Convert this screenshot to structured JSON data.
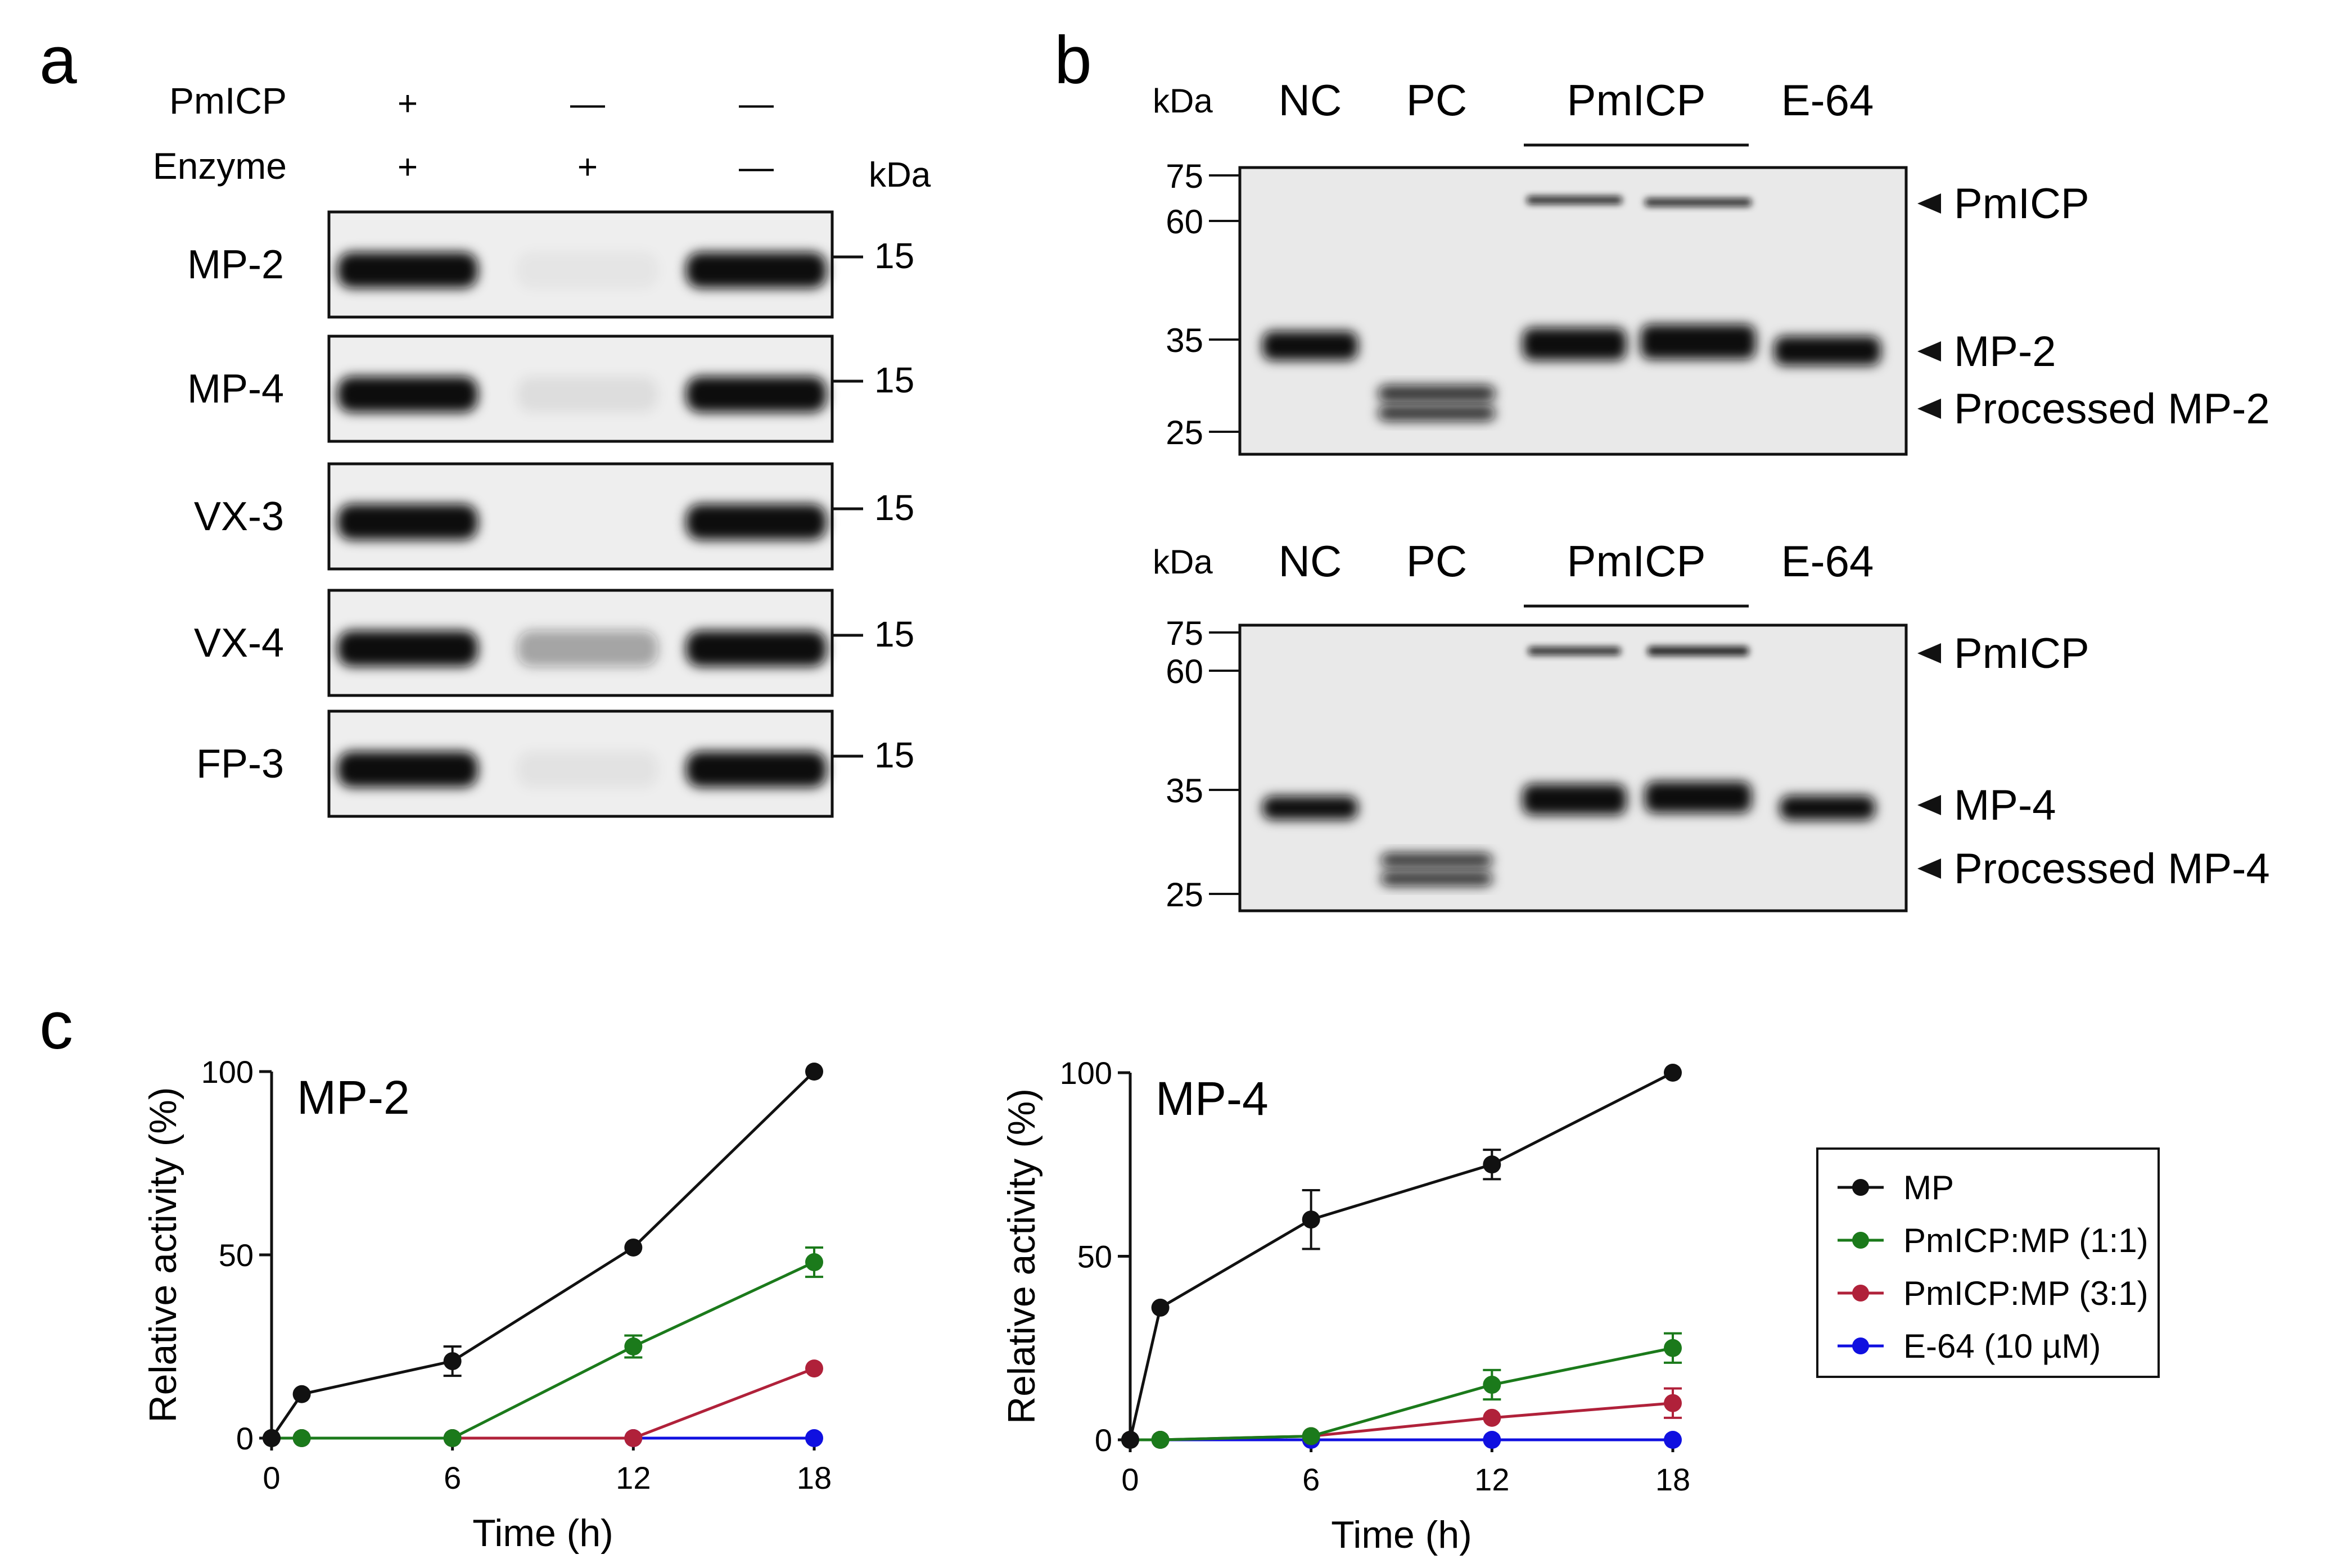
{
  "panels": {
    "a": "a",
    "b": "b",
    "c": "c"
  },
  "panel_a": {
    "header_labels": [
      "PmICP",
      "Enzyme"
    ],
    "row_signs": [
      [
        "+",
        "—",
        "—"
      ],
      [
        "+",
        "+",
        "—"
      ]
    ],
    "kda_label": "kDa",
    "blots": [
      {
        "name": "MP-2",
        "marker": "15",
        "bands": [
          1.0,
          0.04,
          1.0
        ]
      },
      {
        "name": "MP-4",
        "marker": "15",
        "bands": [
          1.0,
          0.07,
          1.0
        ]
      },
      {
        "name": "VX-3",
        "marker": "15",
        "bands": [
          1.0,
          0.0,
          1.0
        ]
      },
      {
        "name": "VX-4",
        "marker": "15",
        "bands": [
          1.0,
          0.35,
          1.0
        ]
      },
      {
        "name": "FP-3",
        "marker": "15",
        "bands": [
          1.0,
          0.05,
          1.0
        ]
      }
    ]
  },
  "panel_b": {
    "gels": [
      {
        "kda_label": "kDa",
        "lanes": [
          "NC",
          "PC",
          "PmICP",
          "E-64"
        ],
        "markers": [
          "75",
          "60",
          "35",
          "25"
        ],
        "annotations": [
          "PmICP",
          "MP-2",
          "Processed MP-2"
        ]
      },
      {
        "kda_label": "kDa",
        "lanes": [
          "NC",
          "PC",
          "PmICP",
          "E-64"
        ],
        "markers": [
          "75",
          "60",
          "35",
          "25"
        ],
        "annotations": [
          "PmICP",
          "MP-4",
          "Processed MP-4"
        ]
      }
    ]
  },
  "chart_data": [
    {
      "type": "line",
      "title": "MP-2",
      "xlabel": "Time (h)",
      "ylabel": "Relative activity (%)",
      "x_ticks": [
        "0",
        "6",
        "12",
        "18"
      ],
      "y_ticks": [
        "0",
        "50",
        "100"
      ],
      "xlim": [
        0,
        18
      ],
      "ylim": [
        0,
        100
      ],
      "series": [
        {
          "name": "MP",
          "color": "#111111",
          "x": [
            0,
            1,
            6,
            12,
            18
          ],
          "y": [
            0,
            12,
            21,
            52,
            100
          ],
          "err": [
            0,
            0,
            4,
            0,
            0
          ]
        },
        {
          "name": "PmICP:MP (1:1)",
          "color": "#1b7a1b",
          "x": [
            0,
            1,
            6,
            12,
            18
          ],
          "y": [
            0,
            0,
            0,
            25,
            48
          ],
          "err": [
            0,
            0,
            0,
            3,
            4
          ]
        },
        {
          "name": "PmICP:MP (3:1)",
          "color": "#b0213a",
          "x": [
            0,
            1,
            6,
            12,
            18
          ],
          "y": [
            0,
            0,
            0,
            0,
            19
          ],
          "err": [
            0,
            0,
            0,
            0,
            0
          ]
        },
        {
          "name": "E-64 (10 µM)",
          "color": "#1010e0",
          "x": [
            0,
            1,
            6,
            12,
            18
          ],
          "y": [
            0,
            0,
            0,
            0,
            0
          ],
          "err": [
            0,
            0,
            0,
            0,
            0
          ]
        }
      ]
    },
    {
      "type": "line",
      "title": "MP-4",
      "xlabel": "Time (h)",
      "ylabel": "Relative activity (%)",
      "x_ticks": [
        "0",
        "6",
        "12",
        "18"
      ],
      "y_ticks": [
        "0",
        "50",
        "100"
      ],
      "xlim": [
        0,
        18
      ],
      "ylim": [
        0,
        100
      ],
      "series": [
        {
          "name": "MP",
          "color": "#111111",
          "x": [
            0,
            1,
            6,
            12,
            18
          ],
          "y": [
            0,
            36,
            60,
            75,
            100
          ],
          "err": [
            0,
            0,
            8,
            4,
            0
          ]
        },
        {
          "name": "PmICP:MP (1:1)",
          "color": "#1b7a1b",
          "x": [
            0,
            1,
            6,
            12,
            18
          ],
          "y": [
            0,
            0,
            1,
            15,
            25
          ],
          "err": [
            0,
            0,
            0,
            4,
            4
          ]
        },
        {
          "name": "PmICP:MP (3:1)",
          "color": "#b0213a",
          "x": [
            0,
            1,
            6,
            12,
            18
          ],
          "y": [
            0,
            0,
            1,
            6,
            10
          ],
          "err": [
            0,
            0,
            0,
            0,
            4
          ]
        },
        {
          "name": "E-64 (10 µM)",
          "color": "#1010e0",
          "x": [
            0,
            1,
            6,
            12,
            18
          ],
          "y": [
            0,
            0,
            0,
            0,
            0
          ],
          "err": [
            0,
            0,
            0,
            0,
            0
          ]
        }
      ]
    }
  ],
  "legend": {
    "items": [
      {
        "label": "MP",
        "color": "#111111"
      },
      {
        "label": "PmICP:MP (1:1)",
        "color": "#1b7a1b"
      },
      {
        "label": "PmICP:MP (3:1)",
        "color": "#b0213a"
      },
      {
        "label": "E-64 (10 µM)",
        "color": "#1010e0"
      }
    ]
  }
}
